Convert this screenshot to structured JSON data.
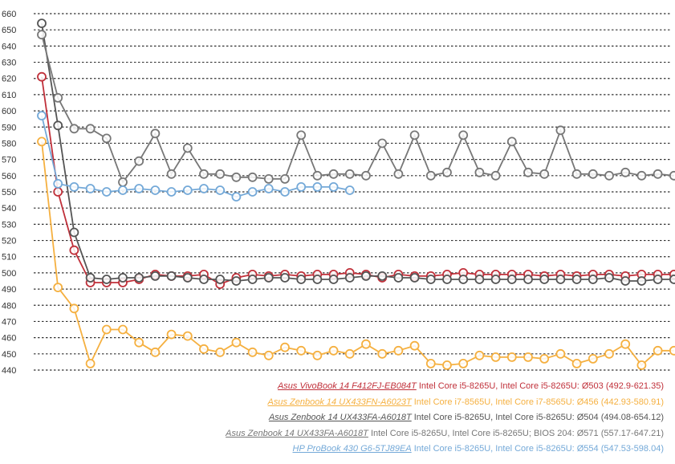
{
  "chart_data": {
    "type": "line",
    "ylim": [
      440,
      660
    ],
    "yticks": [
      660,
      650,
      640,
      630,
      620,
      610,
      600,
      590,
      580,
      570,
      560,
      550,
      540,
      530,
      520,
      510,
      500,
      490,
      480,
      470,
      460,
      450,
      440
    ],
    "grid": true,
    "legend_position": "bottom-right",
    "series": [
      {
        "name": "Asus VivoBook 14 F412FJ-EB084T",
        "desc": "Intel Core i5-8265U, Intel Core i5-8265U: Ø503 (492.9-621.35)",
        "color": "#c0303a",
        "values": [
          621,
          550,
          514,
          494,
          494,
          494,
          496,
          499,
          498,
          498,
          499,
          493,
          497,
          499,
          498,
          499,
          498,
          499,
          499,
          500,
          499,
          497,
          499,
          498,
          498,
          499,
          500,
          499,
          499,
          499,
          499,
          498,
          499,
          498,
          499,
          499,
          498,
          499,
          499,
          499
        ]
      },
      {
        "name": "Asus Zenbook 14 UX433FN-A6023T",
        "desc": "Intel Core i7-8565U, Intel Core i7-8565U: Ø456 (442.93-580.91)",
        "color": "#f5b040",
        "values": [
          581,
          491,
          478,
          444,
          465,
          465,
          457,
          451,
          462,
          461,
          453,
          451,
          457,
          451,
          449,
          454,
          452,
          449,
          452,
          450,
          456,
          450,
          452,
          455,
          444,
          443,
          444,
          449,
          448,
          448,
          448,
          447,
          450,
          444,
          447,
          450,
          456,
          443,
          452,
          452
        ]
      },
      {
        "name": "Asus Zenbook 14 UX433FA-A6018T",
        "desc": "Intel Core i5-8265U, Intel Core i5-8265U: Ø504 (494.08-654.12)",
        "color": "#555555",
        "values": [
          654,
          591,
          525,
          497,
          496,
          497,
          497,
          498,
          498,
          497,
          496,
          496,
          495,
          496,
          497,
          497,
          496,
          496,
          496,
          497,
          498,
          498,
          497,
          497,
          496,
          496,
          496,
          496,
          496,
          496,
          496,
          496,
          496,
          496,
          496,
          497,
          495,
          495,
          496,
          496,
          496,
          496,
          496,
          495,
          497,
          496,
          495,
          498,
          496
        ]
      },
      {
        "name": "Asus Zenbook 14 UX433FA-A6018T",
        "desc": "Intel Core i5-8265U, Intel Core i5-8265U; BIOS 204: Ø571 (557.17-647.21)",
        "color": "#777777",
        "values": [
          647,
          608,
          589,
          589,
          583,
          556,
          569,
          586,
          561,
          577,
          561,
          561,
          559,
          559,
          558,
          558,
          585,
          560,
          561,
          561,
          560,
          580,
          561,
          585,
          560,
          562,
          585,
          562,
          560,
          581,
          562,
          561,
          588,
          561,
          561,
          560,
          562,
          560,
          561,
          560
        ]
      },
      {
        "name": "HP ProBook 430 G6-5TJ89EA",
        "desc": "Intel Core i5-8265U, Intel Core i5-8265U: Ø554 (547.53-598.04)",
        "color": "#74a9d8",
        "values": [
          597,
          555,
          553,
          552,
          550,
          551,
          552,
          551,
          550,
          551,
          552,
          551,
          547,
          550,
          552,
          550,
          553,
          553,
          553,
          551
        ]
      }
    ]
  }
}
